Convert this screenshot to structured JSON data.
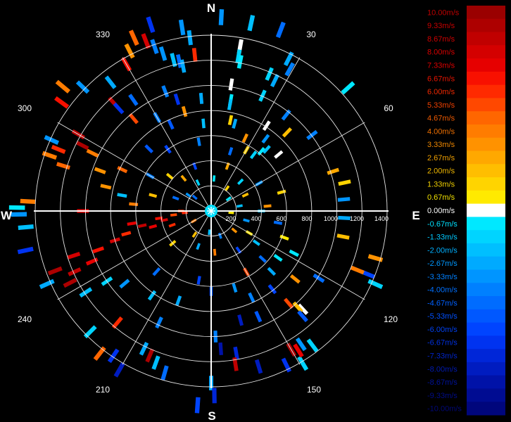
{
  "chart_data": {
    "type": "polar-radar-velocity",
    "cardinals": [
      "N",
      "E",
      "S",
      "W"
    ],
    "angle_labels": [
      "30",
      "60",
      "120",
      "150",
      "210",
      "240",
      "300",
      "330"
    ],
    "range_labels": [
      "200",
      "400",
      "600",
      "800",
      "1000",
      "1200",
      "1400"
    ],
    "colorbar": {
      "labels": [
        "10.00m/s",
        "9.33m/s",
        "8.67m/s",
        "8.00m/s",
        "7.33m/s",
        "6.67m/s",
        "6.00m/s",
        "5.33m/s",
        "4.67m/s",
        "4.00m/s",
        "3.33m/s",
        "2.67m/s",
        "2.00m/s",
        "1.33m/s",
        "0.67m/s",
        "0.00m/s",
        "-0.67m/s",
        "-1.33m/s",
        "-2.00m/s",
        "-2.67m/s",
        "-3.33m/s",
        "-4.00m/s",
        "-4.67m/s",
        "-5.33m/s",
        "-6.00m/s",
        "-6.67m/s",
        "-7.33m/s",
        "-8.00m/s",
        "-8.67m/s",
        "-9.33m/s",
        "-10.00m/s"
      ],
      "colors": [
        "#9a0000",
        "#ad0000",
        "#c00000",
        "#d40000",
        "#e60000",
        "#f81000",
        "#ff2a00",
        "#ff4800",
        "#ff6600",
        "#ff7c00",
        "#ff9200",
        "#ffa800",
        "#ffbe00",
        "#ffd400",
        "#ffea00",
        "#ffffff",
        "#00e8ff",
        "#00d4ff",
        "#00bfff",
        "#00aaff",
        "#0095ff",
        "#0080ff",
        "#006cff",
        "#0058ff",
        "#0044ff",
        "#0033f0",
        "#0026d8",
        "#001cc0",
        "#0012a8",
        "#000c92",
        "#00067c"
      ],
      "text_colors": [
        "#c00000",
        "#c80000",
        "#d00000",
        "#d80000",
        "#e00000",
        "#e81400",
        "#f02800",
        "#f04000",
        "#f05a00",
        "#f07000",
        "#f08800",
        "#f0a000",
        "#f0b800",
        "#f0d000",
        "#f0e000",
        "#ffffff",
        "#00e0ff",
        "#00c8ff",
        "#00b0ff",
        "#0098ff",
        "#0080ff",
        "#0070ff",
        "#0060ff",
        "#0050ff",
        "#0040f0",
        "#0030e0",
        "#0024c8",
        "#001ab0",
        "#00129a",
        "#000c88",
        "#000878"
      ]
    },
    "gates": [
      {
        "az": 3,
        "r": 1545,
        "v": -3.33
      },
      {
        "az": 12,
        "r": 1530,
        "v": -2.0
      },
      {
        "az": 21,
        "r": 1545,
        "v": -4.67
      },
      {
        "az": 48,
        "r": 1465,
        "v": -0.67
      },
      {
        "az": 27,
        "r": 1360,
        "v": -2.67
      },
      {
        "az": 29,
        "r": 1290,
        "v": -4.0
      },
      {
        "az": 23,
        "r": 1185,
        "v": -1.33
      },
      {
        "az": 26,
        "r": 1155,
        "v": -2.67
      },
      {
        "az": 10,
        "r": 1330,
        "v": 0.0
      },
      {
        "az": 10,
        "r": 1250,
        "v": -1.33
      },
      {
        "az": 11,
        "r": 1210,
        "v": -0.67
      },
      {
        "az": 9,
        "r": 1020,
        "v": 0.0
      },
      {
        "az": 10,
        "r": 900,
        "v": -0.67
      },
      {
        "az": 10,
        "r": 860,
        "v": -2.0
      },
      {
        "az": 12,
        "r": 740,
        "v": 1.33
      },
      {
        "az": 24,
        "r": 1005,
        "v": -1.33
      },
      {
        "az": 33,
        "r": 810,
        "v": 0.0
      },
      {
        "az": 37,
        "r": 720,
        "v": -3.33
      },
      {
        "az": 42,
        "r": 660,
        "v": -2.0
      },
      {
        "az": 37,
        "r": 560,
        "v": -1.33
      },
      {
        "az": 44,
        "r": 870,
        "v": 2.0
      },
      {
        "az": 38,
        "r": 970,
        "v": -4.0
      },
      {
        "az": 30,
        "r": 560,
        "v": 1.33
      },
      {
        "az": 18,
        "r": 500,
        "v": -4.67
      },
      {
        "az": 53,
        "r": 1005,
        "v": -4.0
      },
      {
        "az": 72,
        "r": 1020,
        "v": 2.67
      },
      {
        "az": 78,
        "r": 1085,
        "v": 1.33
      },
      {
        "az": 85,
        "r": 1060,
        "v": -3.33
      },
      {
        "az": 93,
        "r": 1060,
        "v": -2.67
      },
      {
        "az": 101,
        "r": 1070,
        "v": 2.0
      },
      {
        "az": 106,
        "r": 1360,
        "v": 3.33
      },
      {
        "az": 112,
        "r": 1345,
        "v": -6.0
      },
      {
        "az": 114,
        "r": 1430,
        "v": -1.33
      },
      {
        "az": 112,
        "r": 1255,
        "v": 4.0
      },
      {
        "az": 122,
        "r": 1010,
        "v": -4.67
      },
      {
        "az": 129,
        "r": 860,
        "v": 3.33
      },
      {
        "az": 137,
        "r": 1070,
        "v": 0.0
      },
      {
        "az": 138,
        "r": 1030,
        "v": 2.0
      },
      {
        "az": 139,
        "r": 1110,
        "v": -5.33
      },
      {
        "az": 143,
        "r": 1340,
        "v": -1.33
      },
      {
        "az": 146,
        "r": 1280,
        "v": -3.33
      },
      {
        "az": 149,
        "r": 1415,
        "v": -1.33
      },
      {
        "az": 154,
        "r": 1365,
        "v": -6.67
      },
      {
        "az": 150,
        "r": 1275,
        "v": 9.33
      },
      {
        "az": 148,
        "r": 1310,
        "v": 7.33
      },
      {
        "az": 163,
        "r": 1295,
        "v": -8.0
      },
      {
        "az": 170,
        "r": 1150,
        "v": -7.33
      },
      {
        "az": 176,
        "r": 1100,
        "v": -8.67
      },
      {
        "az": 178,
        "r": 1000,
        "v": -4.0
      },
      {
        "az": 171,
        "r": 1235,
        "v": 8.67
      },
      {
        "az": 156,
        "r": 920,
        "v": -5.33
      },
      {
        "az": 142,
        "r": 790,
        "v": -6.0
      },
      {
        "az": 133,
        "r": 560,
        "v": -4.67
      },
      {
        "az": 125,
        "r": 440,
        "v": -2.0
      },
      {
        "az": 120,
        "r": 350,
        "v": 0.67
      },
      {
        "az": 150,
        "r": 560,
        "v": 5.33
      },
      {
        "az": 163,
        "r": 640,
        "v": -3.33
      },
      {
        "az": 180,
        "r": 1370,
        "v": -2.67
      },
      {
        "az": 179,
        "r": 1470,
        "v": -7.33
      },
      {
        "az": 184,
        "r": 1550,
        "v": -6.0
      },
      {
        "az": 196,
        "r": 1340,
        "v": -4.67
      },
      {
        "az": 200,
        "r": 1285,
        "v": -2.0
      },
      {
        "az": 203,
        "r": 1250,
        "v": 9.33
      },
      {
        "az": 206,
        "r": 1220,
        "v": -2.67
      },
      {
        "az": 210,
        "r": 1460,
        "v": -8.0
      },
      {
        "az": 214,
        "r": 1390,
        "v": -6.67
      },
      {
        "az": 218,
        "r": 1440,
        "v": 4.67
      },
      {
        "az": 225,
        "r": 1360,
        "v": -1.33
      },
      {
        "az": 220,
        "r": 1160,
        "v": 6.0
      },
      {
        "az": 205,
        "r": 980,
        "v": -4.0
      },
      {
        "az": 200,
        "r": 760,
        "v": -2.67
      },
      {
        "az": 190,
        "r": 560,
        "v": -6.0
      },
      {
        "az": 230,
        "r": 900,
        "v": -3.33
      },
      {
        "az": 236,
        "r": 1000,
        "v": -1.33
      },
      {
        "az": 237,
        "r": 1190,
        "v": -2.0
      },
      {
        "az": 243,
        "r": 1260,
        "v": 9.33
      },
      {
        "az": 246,
        "r": 1190,
        "v": 8.67
      },
      {
        "az": 249,
        "r": 1330,
        "v": 9.33
      },
      {
        "az": 252,
        "r": 1150,
        "v": 8.0
      },
      {
        "az": 246,
        "r": 1430,
        "v": -2.67
      },
      {
        "az": 247,
        "r": 1030,
        "v": 7.33
      },
      {
        "az": 251,
        "r": 950,
        "v": 6.67
      },
      {
        "az": 253,
        "r": 800,
        "v": 8.0
      },
      {
        "az": 255,
        "r": 700,
        "v": 6.0
      },
      {
        "az": 258,
        "r": 560,
        "v": 8.67
      },
      {
        "az": 262,
        "r": 420,
        "v": 6.67
      },
      {
        "az": 264,
        "r": 300,
        "v": 5.33
      },
      {
        "az": 258,
        "r": 1510,
        "v": -6.67
      },
      {
        "az": 265,
        "r": 1480,
        "v": -2.0
      },
      {
        "az": 269,
        "r": 1530,
        "v": -3.33
      },
      {
        "az": 271,
        "r": 1545,
        "v": -0.67
      },
      {
        "az": 273,
        "r": 1460,
        "v": 4.0
      },
      {
        "az": 270,
        "r": 1020,
        "v": 7.33
      },
      {
        "az": 275,
        "r": 620,
        "v": 4.0
      },
      {
        "az": 280,
        "r": 720,
        "v": -2.0
      },
      {
        "az": 283,
        "r": 860,
        "v": 3.33
      },
      {
        "az": 287,
        "r": 1230,
        "v": 4.67
      },
      {
        "az": 289,
        "r": 1360,
        "v": 4.0
      },
      {
        "az": 292,
        "r": 1310,
        "v": 6.0
      },
      {
        "az": 294,
        "r": 1390,
        "v": -3.33
      },
      {
        "az": 297,
        "r": 1150,
        "v": 9.33
      },
      {
        "az": 300,
        "r": 1220,
        "v": 8.67
      },
      {
        "az": 296,
        "r": 1050,
        "v": 4.0
      },
      {
        "az": 290,
        "r": 940,
        "v": 3.33
      },
      {
        "az": 306,
        "r": 1470,
        "v": 6.67
      },
      {
        "az": 310,
        "r": 1540,
        "v": 4.0
      },
      {
        "az": 314,
        "r": 1420,
        "v": -3.33
      },
      {
        "az": 318,
        "r": 1160,
        "v": 8.67
      },
      {
        "az": 318,
        "r": 1100,
        "v": -6.67
      },
      {
        "az": 322,
        "r": 1300,
        "v": -2.67
      },
      {
        "az": 325,
        "r": 1080,
        "v": -4.67
      },
      {
        "az": 330,
        "r": 1350,
        "v": 6.67
      },
      {
        "az": 333,
        "r": 1430,
        "v": 3.33
      },
      {
        "az": 336,
        "r": 1510,
        "v": 4.67
      },
      {
        "az": 339,
        "r": 1450,
        "v": 8.0
      },
      {
        "az": 341,
        "r": 1385,
        "v": -4.0
      },
      {
        "az": 342,
        "r": 1560,
        "v": -6.67
      },
      {
        "az": 343,
        "r": 1310,
        "v": -3.33
      },
      {
        "az": 346,
        "r": 1240,
        "v": -2.0
      },
      {
        "az": 348,
        "r": 1220,
        "v": -4.67
      },
      {
        "az": 349,
        "r": 1175,
        "v": -2.67
      },
      {
        "az": 351,
        "r": 1480,
        "v": -3.33
      },
      {
        "az": 353,
        "r": 1390,
        "v": -2.67
      },
      {
        "az": 354,
        "r": 1250,
        "v": 6.0
      },
      {
        "az": 339,
        "r": 1020,
        "v": -4.0
      },
      {
        "az": 343,
        "r": 930,
        "v": -6.67
      },
      {
        "az": 345,
        "r": 820,
        "v": 3.33
      },
      {
        "az": 335,
        "r": 760,
        "v": -5.33
      },
      {
        "az": 355,
        "r": 700,
        "v": -2.0
      },
      {
        "az": 350,
        "r": 560,
        "v": -4.0
      },
      {
        "az": 325,
        "r": 600,
        "v": -6.0
      },
      {
        "az": 315,
        "r": 700,
        "v": -5.33
      },
      {
        "az": 60,
        "r": 440,
        "v": -3.33
      },
      {
        "az": 75,
        "r": 580,
        "v": 1.33
      },
      {
        "az": 85,
        "r": 450,
        "v": 3.33
      },
      {
        "az": 90,
        "r": 400,
        "v": -2.0
      },
      {
        "az": 100,
        "r": 540,
        "v": -4.67
      },
      {
        "az": 110,
        "r": 620,
        "v": 0.67
      },
      {
        "az": 117,
        "r": 740,
        "v": -0.67
      },
      {
        "az": 140,
        "r": 960,
        "v": 5.33
      },
      {
        "az": 165,
        "r": 900,
        "v": -8.0
      },
      {
        "az": 215,
        "r": 820,
        "v": -2.0
      },
      {
        "az": 222,
        "r": 650,
        "v": -4.67
      },
      {
        "az": 230,
        "r": 400,
        "v": 1.33
      },
      {
        "az": 285,
        "r": 480,
        "v": 2.0
      },
      {
        "az": 300,
        "r": 560,
        "v": -4.0
      },
      {
        "az": 310,
        "r": 430,
        "v": 1.33
      },
      {
        "az": 340,
        "r": 380,
        "v": -6.0
      },
      {
        "az": 20,
        "r": 380,
        "v": 2.67
      },
      {
        "az": 45,
        "r": 330,
        "v": -1.33
      },
      {
        "az": 65,
        "r": 300,
        "v": 2.0
      },
      {
        "az": 105,
        "r": 290,
        "v": -3.33
      },
      {
        "az": 145,
        "r": 380,
        "v": -6.0
      },
      {
        "az": 175,
        "r": 330,
        "v": 4.0
      },
      {
        "az": 200,
        "r": 300,
        "v": -2.67
      },
      {
        "az": 250,
        "r": 330,
        "v": 6.0
      },
      {
        "az": 290,
        "r": 300,
        "v": -4.67
      },
      {
        "az": 320,
        "r": 340,
        "v": 2.67
      },
      {
        "az": 5,
        "r": 260,
        "v": -0.67
      },
      {
        "az": 35,
        "r": 220,
        "v": 1.33
      },
      {
        "az": 80,
        "r": 230,
        "v": -2.0
      },
      {
        "az": 130,
        "r": 240,
        "v": 3.33
      },
      {
        "az": 160,
        "r": 210,
        "v": -4.0
      },
      {
        "az": 215,
        "r": 230,
        "v": 2.0
      },
      {
        "az": 270,
        "r": 240,
        "v": 5.33
      },
      {
        "az": 305,
        "r": 220,
        "v": -3.33
      },
      {
        "az": 335,
        "r": 250,
        "v": -1.33
      },
      {
        "az": 55,
        "r": 170,
        "v": -0.67
      },
      {
        "az": 95,
        "r": 160,
        "v": 0.67
      },
      {
        "az": 185,
        "r": 170,
        "v": -2.0
      },
      {
        "az": 240,
        "r": 160,
        "v": 4.0
      },
      {
        "az": 310,
        "r": 170,
        "v": -4.67
      },
      {
        "az": 125,
        "r": 650,
        "v": -0.67
      },
      {
        "az": 135,
        "r": 680,
        "v": -2.67
      },
      {
        "az": 155,
        "r": 760,
        "v": -4.0
      },
      {
        "az": 180,
        "r": 640,
        "v": -5.33
      },
      {
        "az": 255,
        "r": 480,
        "v": 7.33
      },
      {
        "az": 259,
        "r": 380,
        "v": 8.0
      },
      {
        "az": 261,
        "r": 640,
        "v": 7.33
      },
      {
        "az": 266,
        "r": 210,
        "v": 6.0
      },
      {
        "az": 50,
        "r": 700,
        "v": 0.0
      },
      {
        "az": 40,
        "r": 620,
        "v": -0.67
      },
      {
        "az": 25,
        "r": 640,
        "v": 3.33
      },
      {
        "az": 15,
        "r": 720,
        "v": -2.67
      },
      {
        "az": 355,
        "r": 900,
        "v": -2.67
      },
      {
        "az": 330,
        "r": 860,
        "v": -4.0
      },
      {
        "az": 320,
        "r": 960,
        "v": 5.33
      },
      {
        "az": 295,
        "r": 780,
        "v": 4.67
      }
    ]
  }
}
